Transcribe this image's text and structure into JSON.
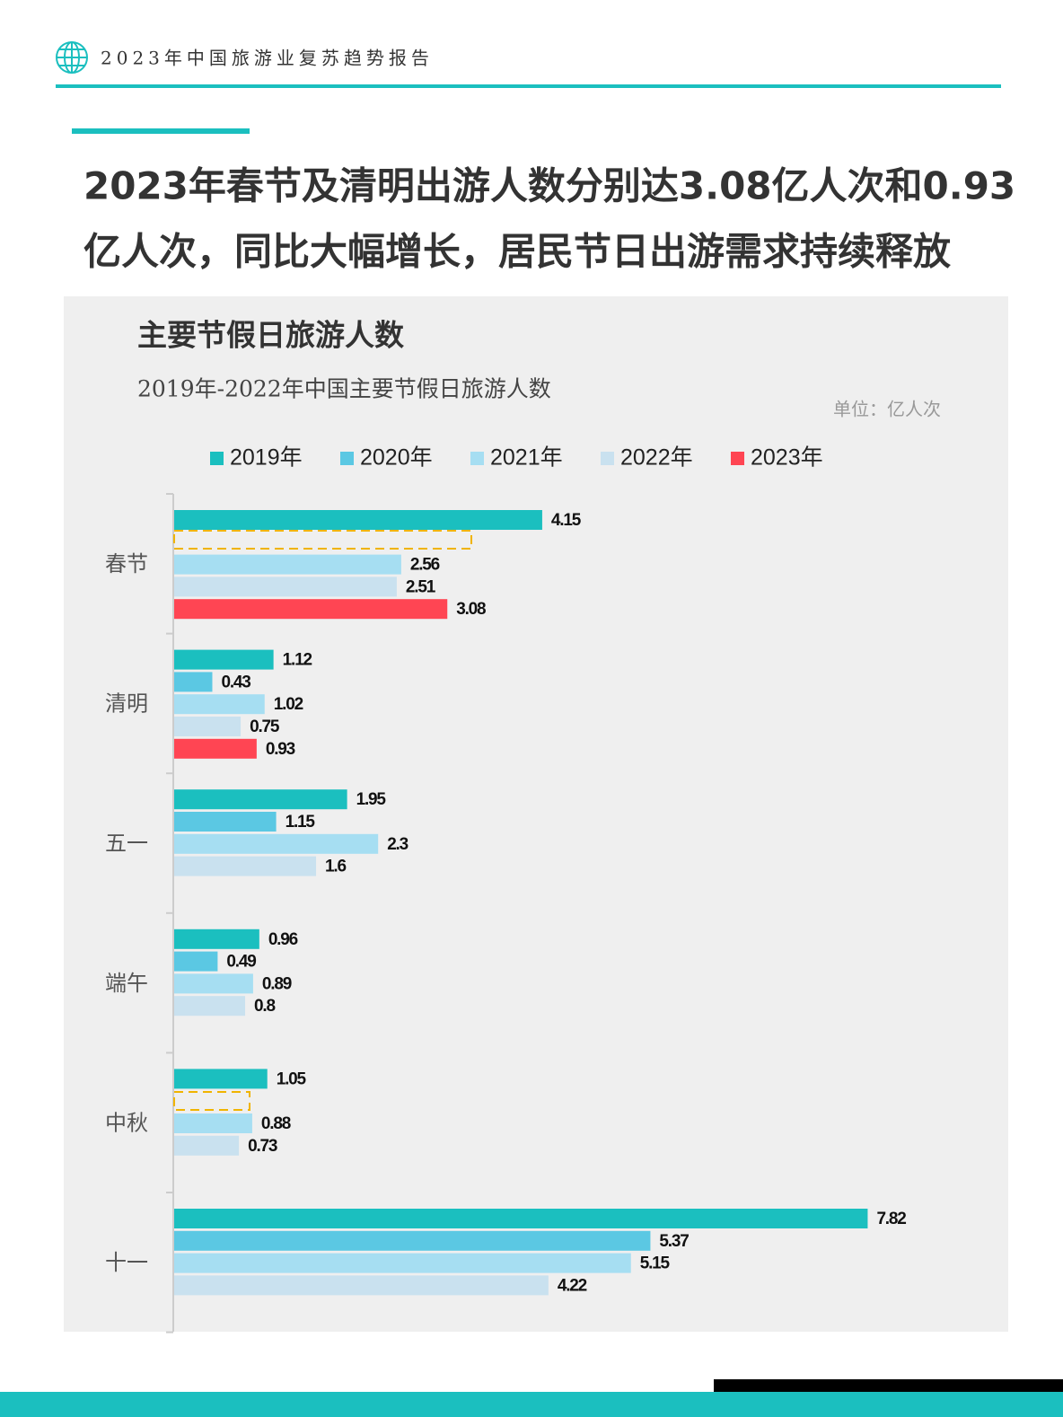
{
  "header": {
    "report_name": "2023年中国旅游业复苏趋势报告"
  },
  "headline": [
    "2023年春节及清明出游人数分别达3.08亿人次和0.93",
    "亿人次，同比大幅增长，居民节日出游需求持续释放"
  ],
  "chart_data": {
    "type": "bar",
    "orientation": "horizontal",
    "title": "主要节假日旅游人数",
    "subtitle": "2019年-2022年中国主要节假日旅游人数",
    "unit": "单位：亿人次",
    "categories": [
      "春节",
      "清明",
      "五一",
      "端午",
      "中秋",
      "十一"
    ],
    "series": [
      {
        "name": "2019年",
        "color": "#1bbfbf",
        "values": [
          4.15,
          1.12,
          1.95,
          0.96,
          1.05,
          7.82
        ]
      },
      {
        "name": "2020年",
        "color": "#5bc8e3",
        "values": [
          null,
          0.43,
          1.15,
          0.49,
          null,
          5.37
        ]
      },
      {
        "name": "2021年",
        "color": "#a6def2",
        "values": [
          2.56,
          1.02,
          2.3,
          0.89,
          0.88,
          5.15
        ]
      },
      {
        "name": "2022年",
        "color": "#c9e1ef",
        "values": [
          2.51,
          0.75,
          1.6,
          0.8,
          0.73,
          4.22
        ]
      },
      {
        "name": "2023年",
        "color": "#ff4553",
        "values": [
          3.08,
          0.93,
          null,
          null,
          null,
          null
        ]
      }
    ],
    "xlim": [
      0,
      9
    ],
    "legend": "top"
  }
}
